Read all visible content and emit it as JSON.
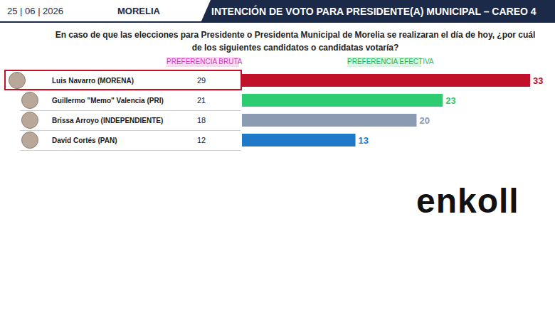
{
  "header": {
    "date": "25 | 06 | 2026",
    "city": "MORELIA",
    "title": "INTENCIÓN DE VOTO PARA PRESIDENTE(A) MUNICIPAL – CAREO 4"
  },
  "question": "En caso de que las elecciones para Presidente o Presidenta Municipal de Morelia se realizaran el día de hoy, ¿por cuál de los siguientes candidatos o candidatas votaría?",
  "logo": "enkoll",
  "chart_data": {
    "type": "bar",
    "orientation": "horizontal",
    "raw_title": "PREFERENCIA BRUTA",
    "title": "PREFERENCIA EFECTIVA",
    "categories": [
      "Luis Navarro (MORENA)",
      "Guillermo \"Memo\" Valencia (PRI)",
      "Brissa Arroyo (INDEPENDIENTE)",
      "David Cortés (PAN)"
    ],
    "raw_values": [
      29,
      21,
      18,
      12
    ],
    "values": [
      33,
      23,
      20,
      13
    ],
    "colors": [
      "#c0102a",
      "#2ecc71",
      "#8a9bb2",
      "#1f78c8"
    ],
    "xlim": [
      0,
      33
    ],
    "grid": false,
    "data_labels": true,
    "tick_labels": false
  }
}
